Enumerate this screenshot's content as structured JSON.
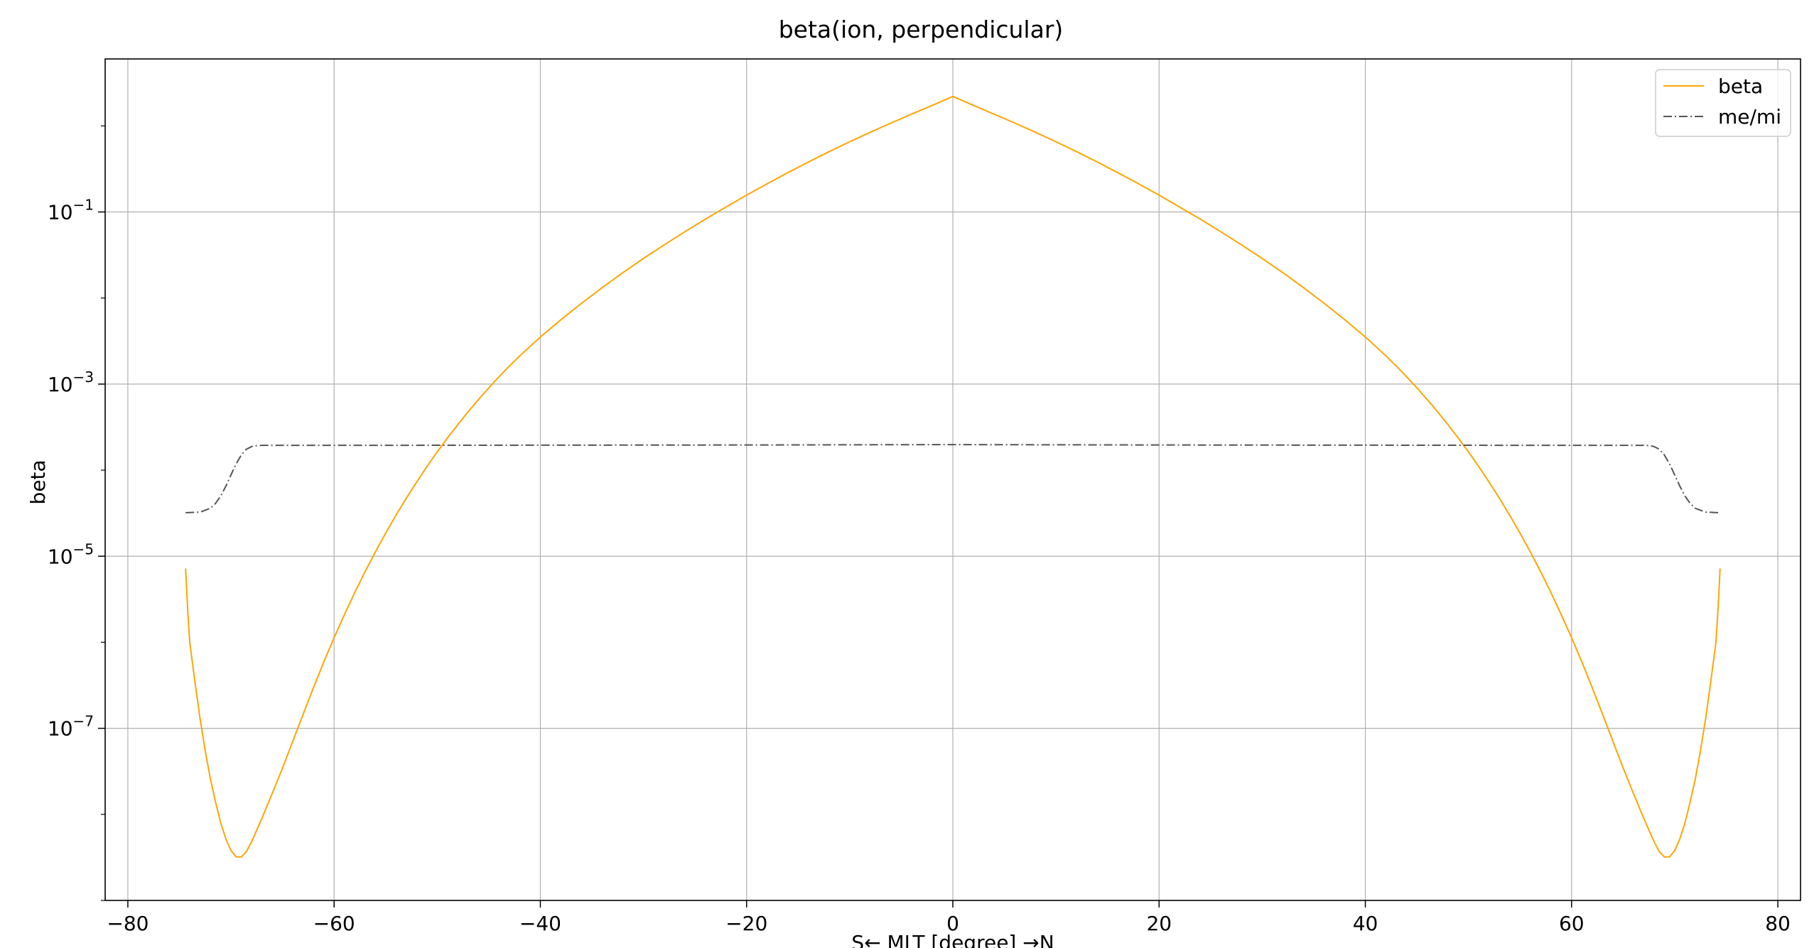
{
  "chart_data": {
    "type": "line",
    "title": "beta(ion, perpendicular)",
    "xlabel": "S← MLT [degree] →N",
    "ylabel": "beta",
    "xlim": [
      -82.2,
      82.2
    ],
    "ylim": [
      1e-09,
      6
    ],
    "yscale": "log",
    "grid": true,
    "legend_position": "top-right",
    "x_ticks": [
      -80,
      -60,
      -40,
      -20,
      0,
      20,
      40,
      60,
      80
    ],
    "x_tick_labels": [
      "−80",
      "−60",
      "−40",
      "−20",
      "0",
      "20",
      "40",
      "60",
      "80"
    ],
    "y_ticks": [
      1e-07,
      1e-05,
      0.001,
      0.1
    ],
    "y_tick_labels": [
      {
        "base": "10",
        "exp": "−7"
      },
      {
        "base": "10",
        "exp": "−5"
      },
      {
        "base": "10",
        "exp": "−3"
      },
      {
        "base": "10",
        "exp": "−1"
      }
    ],
    "series": [
      {
        "name": "beta",
        "color": "#ffa500",
        "style": "solid",
        "x": [
          -74.4,
          -74.2,
          -74.0,
          -73.5,
          -73.0,
          -72.5,
          -72.0,
          -71.5,
          -71.0,
          -70.5,
          -70.0,
          -69.5,
          -69.0,
          -68.5,
          -68.0,
          -67.0,
          -66.0,
          -65.0,
          -64.0,
          -63.0,
          -62.0,
          -61.0,
          -60.0,
          -59.0,
          -58.0,
          -57.0,
          -56.0,
          -55.0,
          -54.0,
          -53.0,
          -52.0,
          -51.0,
          -50.0,
          -49.0,
          -48.0,
          -47.0,
          -46.0,
          -45.0,
          -44.0,
          -43.0,
          -42.0,
          -41.0,
          -40.0,
          -38.0,
          -36.0,
          -34.0,
          -32.0,
          -30.0,
          -28.0,
          -26.0,
          -24.0,
          -22.0,
          -20.0,
          -18.0,
          -16.0,
          -14.0,
          -12.0,
          -10.0,
          -8.0,
          -6.0,
          -4.0,
          -2.0,
          0.0,
          2.0,
          4.0,
          6.0,
          8.0,
          10.0,
          12.0,
          14.0,
          16.0,
          18.0,
          20.0,
          22.0,
          24.0,
          26.0,
          28.0,
          30.0,
          32.0,
          34.0,
          36.0,
          38.0,
          40.0,
          41.0,
          42.0,
          43.0,
          44.0,
          45.0,
          46.0,
          47.0,
          48.0,
          49.0,
          50.0,
          51.0,
          52.0,
          53.0,
          54.0,
          55.0,
          56.0,
          57.0,
          58.0,
          59.0,
          60.0,
          61.0,
          62.0,
          63.0,
          64.0,
          65.0,
          66.0,
          67.0,
          68.0,
          68.5,
          69.0,
          69.5,
          70.0,
          70.5,
          71.0,
          71.5,
          72.0,
          72.5,
          73.0,
          73.5,
          74.0,
          74.2,
          74.4
        ],
        "y": [
          7.2e-06,
          2.4e-06,
          1e-06,
          3.5e-07,
          1.3e-07,
          5.5e-08,
          2.6e-08,
          1.4e-08,
          8e-09,
          5.2e-09,
          3.8e-09,
          3.2e-09,
          3.2e-09,
          3.7e-09,
          4.8e-09,
          9e-09,
          1.75e-08,
          3.45e-08,
          7.1e-08,
          1.46e-07,
          2.97e-07,
          5.9e-07,
          1.13e-06,
          2.09e-06,
          3.77e-06,
          6.6e-06,
          1.12e-05,
          1.85e-05,
          2.99e-05,
          4.71e-05,
          7.26e-05,
          0.00011,
          0.000163,
          0.000237,
          0.000339,
          0.000477,
          0.000661,
          0.000903,
          0.00122,
          0.00162,
          0.00212,
          0.00274,
          0.00352,
          0.0056,
          0.0087,
          0.0132,
          0.0197,
          0.0288,
          0.0414,
          0.0588,
          0.0825,
          0.114,
          0.157,
          0.213,
          0.286,
          0.381,
          0.502,
          0.654,
          0.845,
          1.08,
          1.37,
          1.73,
          2.2,
          1.73,
          1.37,
          1.08,
          0.845,
          0.654,
          0.502,
          0.381,
          0.286,
          0.213,
          0.157,
          0.114,
          0.0825,
          0.0588,
          0.0414,
          0.0288,
          0.0197,
          0.0132,
          0.0087,
          0.0056,
          0.00352,
          0.00274,
          0.00212,
          0.00162,
          0.00122,
          0.000903,
          0.000661,
          0.000477,
          0.000339,
          0.000237,
          0.000163,
          0.00011,
          7.26e-05,
          4.71e-05,
          2.99e-05,
          1.85e-05,
          1.12e-05,
          6.6e-06,
          3.77e-06,
          2.09e-06,
          1.13e-06,
          5.9e-07,
          2.97e-07,
          1.46e-07,
          7.1e-08,
          3.45e-08,
          1.75e-08,
          9e-09,
          4.8e-09,
          3.7e-09,
          3.2e-09,
          3.2e-09,
          3.8e-09,
          5.2e-09,
          8e-09,
          1.4e-08,
          2.6e-08,
          5.5e-08,
          1.3e-07,
          3.5e-07,
          1e-06,
          2.4e-06,
          7.2e-06
        ]
      },
      {
        "name": "me/mi",
        "color": "#555555",
        "style": "dashdot",
        "x": [
          -74.4,
          -73.0,
          -72.0,
          -71.5,
          -71.0,
          -70.5,
          -70.0,
          -69.5,
          -69.0,
          -68.5,
          -68.0,
          -67.5,
          -67.0,
          -60.0,
          -40.0,
          -20.0,
          0.0,
          20.0,
          40.0,
          60.0,
          67.0,
          67.5,
          68.0,
          68.5,
          69.0,
          69.5,
          70.0,
          70.5,
          71.0,
          71.5,
          72.0,
          73.0,
          74.4
        ],
        "y": [
          3.2e-05,
          3.25e-05,
          3.6e-05,
          4.1e-05,
          5e-05,
          6.5e-05,
          8.8e-05,
          0.000118,
          0.00015,
          0.000175,
          0.000188,
          0.000193,
          0.000194,
          0.000194,
          0.000195,
          0.000196,
          0.000198,
          0.000196,
          0.000195,
          0.000194,
          0.000194,
          0.000193,
          0.000188,
          0.000175,
          0.00015,
          0.000118,
          8.8e-05,
          6.5e-05,
          5e-05,
          4.1e-05,
          3.6e-05,
          3.25e-05,
          3.2e-05
        ]
      }
    ]
  }
}
